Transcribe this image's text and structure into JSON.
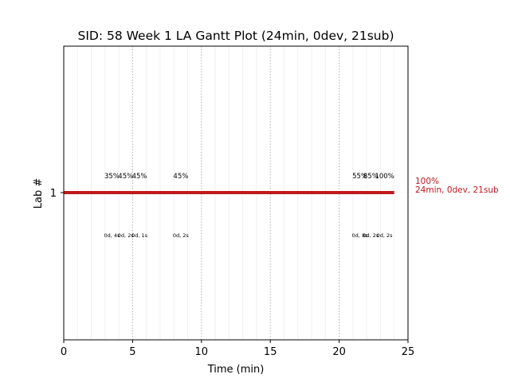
{
  "chart_data": {
    "type": "gantt",
    "title": "SID: 58 Week 1 LA Gantt Plot (24min, 0dev, 21sub)",
    "xlabel": "Time (min)",
    "ylabel": "Lab #",
    "xlim": [
      0,
      25
    ],
    "x_ticks": [
      0,
      5,
      10,
      15,
      20,
      25
    ],
    "x_tick_labels": [
      "0",
      "5",
      "10",
      "15",
      "20",
      "25"
    ],
    "y_ticks": [
      1
    ],
    "y_tick_labels": [
      "1"
    ],
    "grid": "vertical dotted lines at major ticks, faint lines every minute",
    "bar": {
      "lab": 1,
      "start": 0,
      "end": 24,
      "color": "#c0181c"
    },
    "end_label": {
      "line1": "100%",
      "line2": "24min, 0dev, 21sub",
      "color": "#c0181c"
    },
    "percent_labels": [
      {
        "x": 3.5,
        "text": "35%"
      },
      {
        "x": 4.5,
        "text": "45%"
      },
      {
        "x": 5.5,
        "text": "45%"
      },
      {
        "x": 8.5,
        "text": "45%"
      },
      {
        "x": 21.5,
        "text": "55%"
      },
      {
        "x": 22.3,
        "text": "85%"
      },
      {
        "x": 23.3,
        "text": "100%"
      }
    ],
    "event_labels": [
      {
        "x": 3.5,
        "text": "0d, 4s"
      },
      {
        "x": 4.5,
        "text": "0d, 2s"
      },
      {
        "x": 5.5,
        "text": "0d, 1s"
      },
      {
        "x": 8.5,
        "text": "0d, 2s"
      },
      {
        "x": 21.5,
        "text": "0d, 8s"
      },
      {
        "x": 22.3,
        "text": "0d, 2s"
      },
      {
        "x": 23.3,
        "text": "0d, 2s"
      }
    ]
  }
}
